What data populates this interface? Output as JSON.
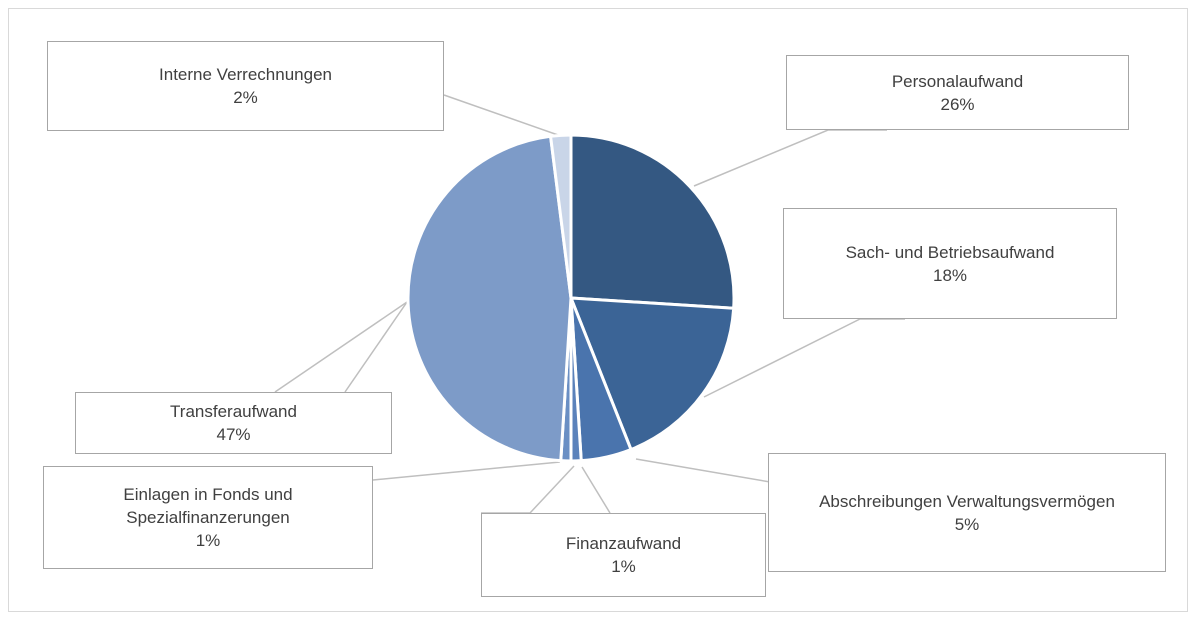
{
  "chart_data": {
    "type": "pie",
    "title": "",
    "slices": [
      {
        "label": "Personalaufwand",
        "value": 26,
        "display": "26%",
        "color": "#345882"
      },
      {
        "label": "Sach- und Betriebsaufwand",
        "value": 18,
        "display": "18%",
        "color": "#3b6496"
      },
      {
        "label": "Abschreibungen Verwaltungsvermögen",
        "value": 5,
        "display": "5%",
        "color": "#4a74ad"
      },
      {
        "label": "Finanzaufwand",
        "value": 1,
        "display": "1%",
        "color": "#5b82bb"
      },
      {
        "label": "Einlagen in Fonds und Spezialfinanzerungen",
        "value": 1,
        "display": "1%",
        "color": "#6a8fc4"
      },
      {
        "label": "Transferaufwand",
        "value": 47,
        "display": "47%",
        "color": "#7d9bc8"
      },
      {
        "label": "Interne Verrechnungen",
        "value": 2,
        "display": "2%",
        "color": "#c9d5e8"
      }
    ],
    "legend": "none",
    "data_labels": "callouts"
  }
}
